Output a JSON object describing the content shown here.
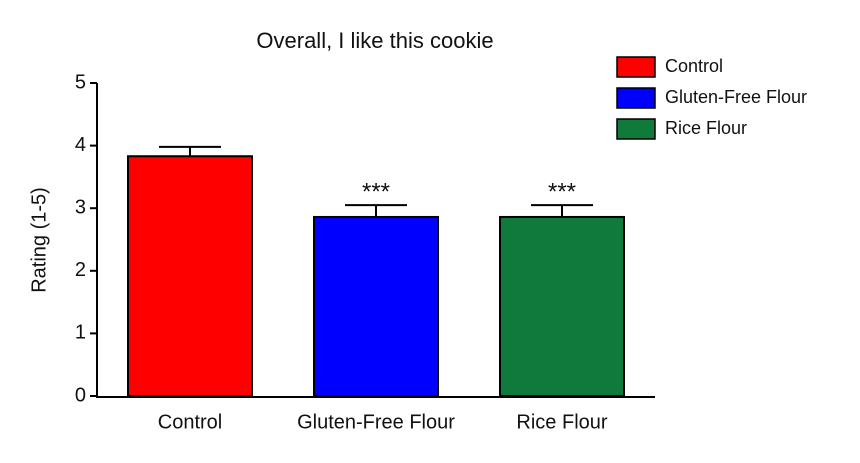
{
  "chart_data": {
    "type": "bar",
    "title": "Overall, I like this cookie",
    "ylabel": "Rating (1-5)",
    "categories": [
      "Control",
      "Gluten-Free Flour",
      "Rice Flour"
    ],
    "values": [
      3.83,
      2.86,
      2.86
    ],
    "errors": [
      0.15,
      0.19,
      0.19
    ],
    "colors": [
      "#ff0000",
      "#0000ff",
      "#0f7a3c"
    ],
    "ylim": [
      0,
      5
    ],
    "yticks": [
      0,
      1,
      2,
      3,
      4,
      5
    ],
    "annotations": [
      {
        "category": "Gluten-Free Flour",
        "text": "***"
      },
      {
        "category": "Rice Flour",
        "text": "***"
      }
    ],
    "legend": "upper right"
  }
}
